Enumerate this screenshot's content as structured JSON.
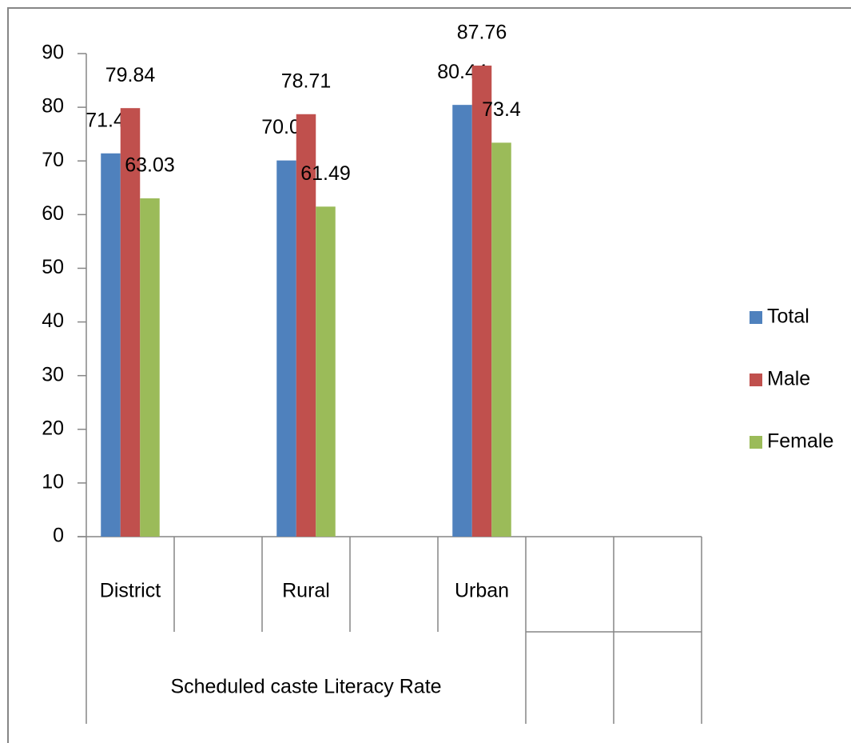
{
  "chart_data": {
    "type": "bar",
    "categories": [
      "District",
      null,
      "Rural",
      null,
      "Urban",
      null,
      null
    ],
    "category_group_label": "Scheduled caste Literacy Rate",
    "series": [
      {
        "name": "Total",
        "color": "#4f81bd",
        "values": [
          71.41,
          null,
          70.09,
          null,
          80.44,
          null,
          null
        ]
      },
      {
        "name": "Male",
        "color": "#c0504d",
        "values": [
          79.84,
          null,
          78.71,
          null,
          87.76,
          null,
          null
        ]
      },
      {
        "name": "Female",
        "color": "#9bbb59",
        "values": [
          63.03,
          null,
          61.49,
          null,
          73.4,
          null,
          null
        ]
      }
    ],
    "ylim": [
      0,
      90
    ],
    "yticks": [
      0,
      10,
      20,
      30,
      40,
      50,
      60,
      70,
      80,
      90
    ],
    "grid": false,
    "legend": "right",
    "data_labels": true
  }
}
